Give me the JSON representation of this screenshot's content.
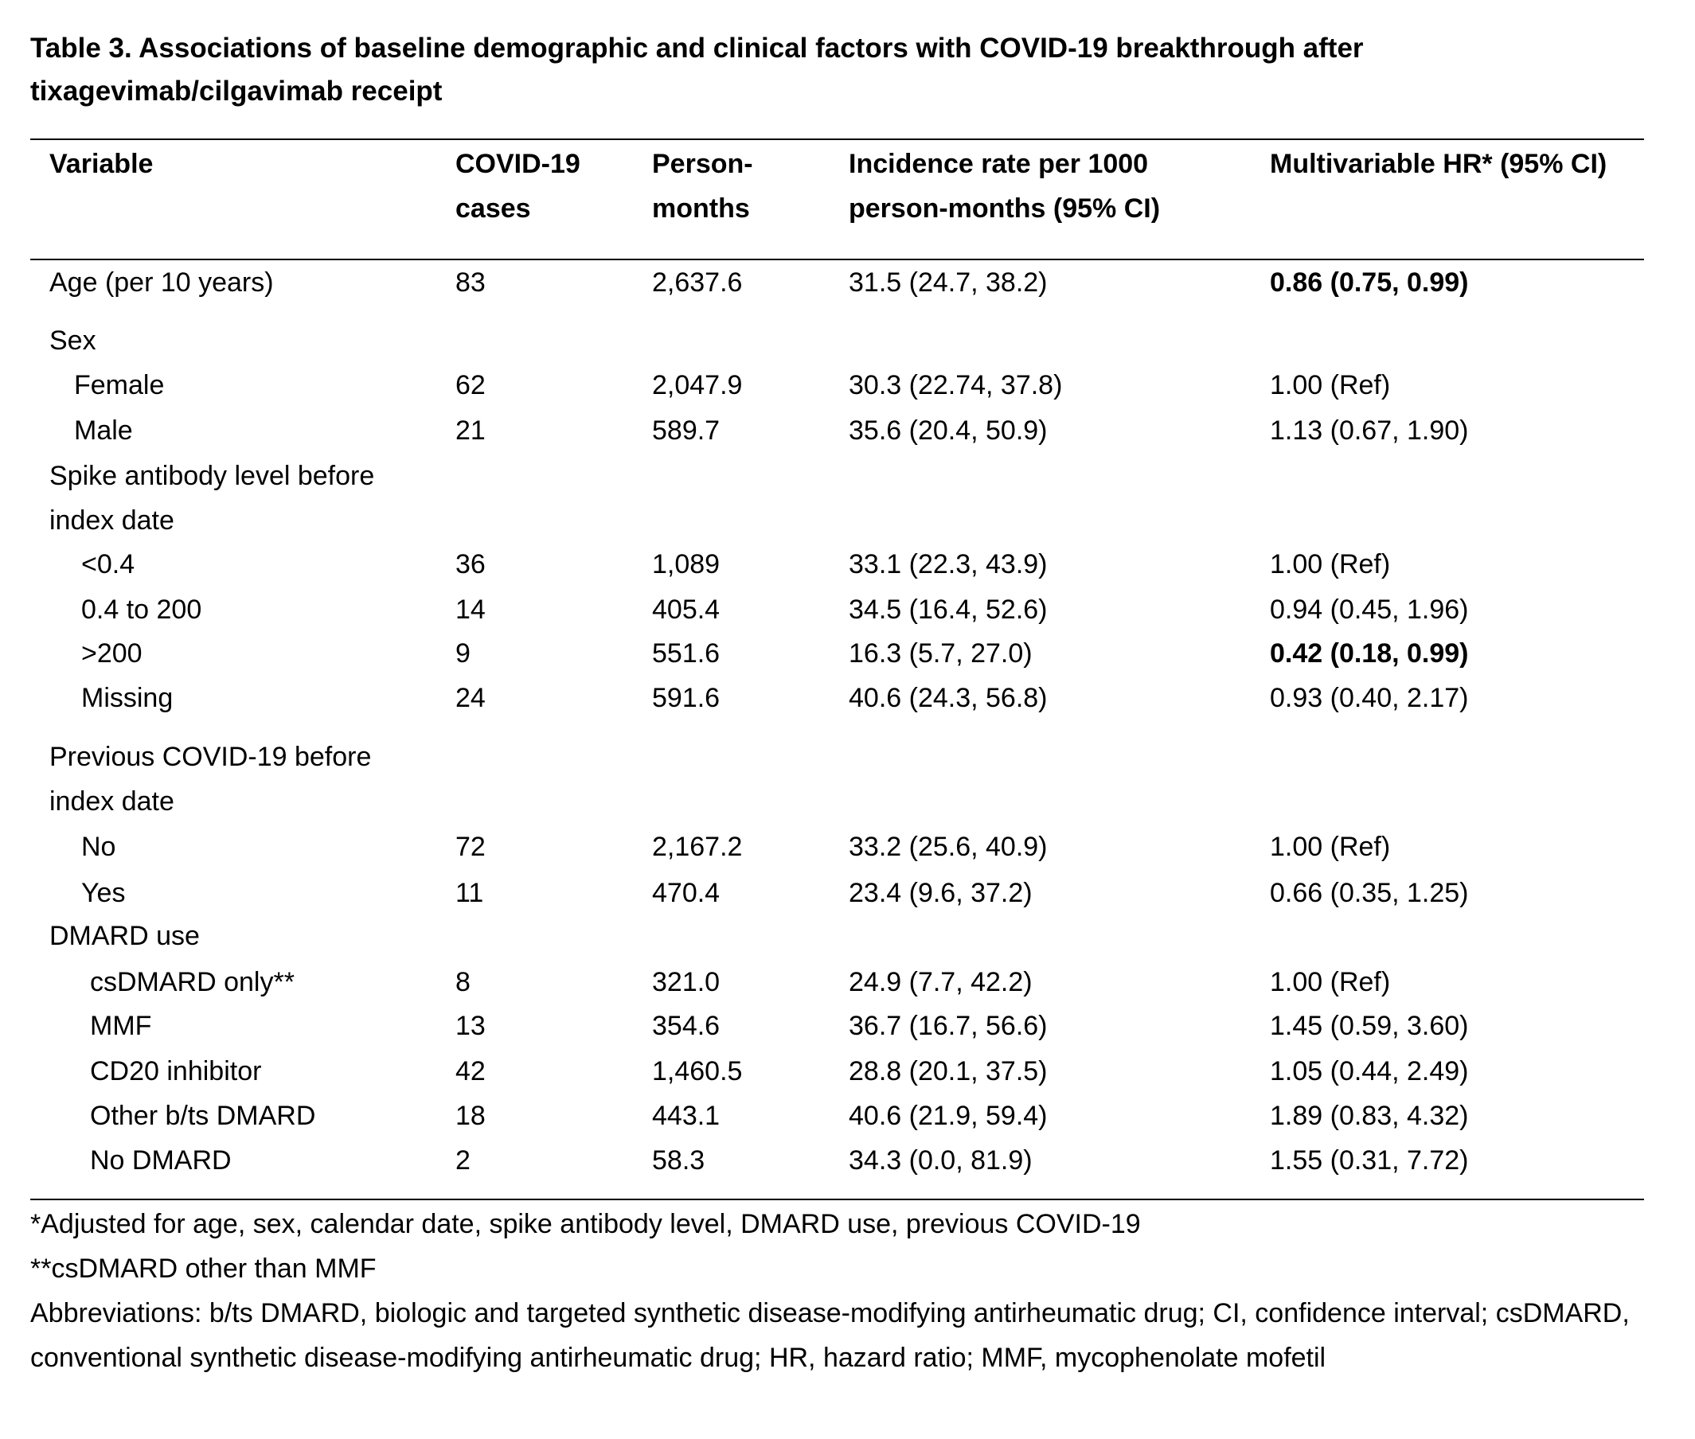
{
  "title": "Table 3. Associations of baseline demographic and clinical factors with COVID-19 breakthrough after tixagevimab/cilgavimab receipt",
  "table": {
    "header": [
      "Variable",
      "COVID-19 cases",
      "Person-months",
      "Incidence rate per 1000 person-months (95% CI)",
      "Multivariable HR* (95% CI)"
    ],
    "rows": [
      [
        "Age (per 10 years)",
        "83",
        "2,637.6",
        "31.5 (24.7, 38.2)",
        "0.86 (0.75, 0.99)"
      ],
      [
        "Sex"
      ],
      [
        "Female",
        "62",
        "2,047.9",
        "30.3 (22.74, 37.8)",
        "1.00 (Ref)"
      ],
      [
        "Male",
        "21",
        "589.7",
        "35.6 (20.4, 50.9)",
        "1.13 (0.67, 1.90)"
      ],
      [
        "Spike antibody level before index date"
      ],
      [
        "<0.4",
        "36",
        "1,089",
        "33.1 (22.3, 43.9)",
        "1.00 (Ref)"
      ],
      [
        "0.4 to 200",
        "14",
        "405.4",
        "34.5 (16.4, 52.6)",
        "0.94 (0.45, 1.96)"
      ],
      [
        ">200",
        "9",
        "551.6",
        "16.3 (5.7, 27.0)",
        "0.42 (0.18, 0.99)"
      ],
      [
        "Missing",
        "24",
        "591.6",
        "40.6 (24.3, 56.8)",
        "0.93 (0.40, 2.17)"
      ],
      [
        "Previous COVID-19 before index date"
      ],
      [
        "No",
        "72",
        "2,167.2",
        "33.2 (25.6, 40.9)",
        "1.00 (Ref)"
      ],
      [
        "Yes",
        "11",
        "470.4",
        "23.4 (9.6, 37.2)",
        "0.66 (0.35, 1.25)"
      ],
      [
        "DMARD use"
      ],
      [
        "csDMARD only**",
        "8",
        "321.0",
        "24.9 (7.7, 42.2)",
        "1.00 (Ref)"
      ],
      [
        "MMF",
        "13",
        "354.6",
        "36.7 (16.7, 56.6)",
        "1.45 (0.59, 3.60)"
      ],
      [
        "CD20 inhibitor",
        "42",
        "1,460.5",
        "28.8 (20.1, 37.5)",
        "1.05 (0.44, 2.49)"
      ],
      [
        "Other b/ts DMARD",
        "18",
        "443.1",
        "40.6 (21.9, 59.4)",
        "1.89 (0.83, 4.32)"
      ],
      [
        "No DMARD",
        "2",
        "58.3",
        "34.3 (0.0, 81.9)",
        "1.55 (0.31, 7.72)"
      ]
    ]
  },
  "footnotes": [
    "*Adjusted for age, sex, calendar date, spike antibody level, DMARD use, previous COVID-19",
    "**csDMARD other than MMF",
    "Abbreviations: b/ts DMARD, biologic and targeted synthetic disease-modifying antirheumatic drug; CI, confidence interval; csDMARD, conventional synthetic disease-modifying antirheumatic drug; HR, hazard ratio; MMF, mycophenolate mofetil"
  ]
}
